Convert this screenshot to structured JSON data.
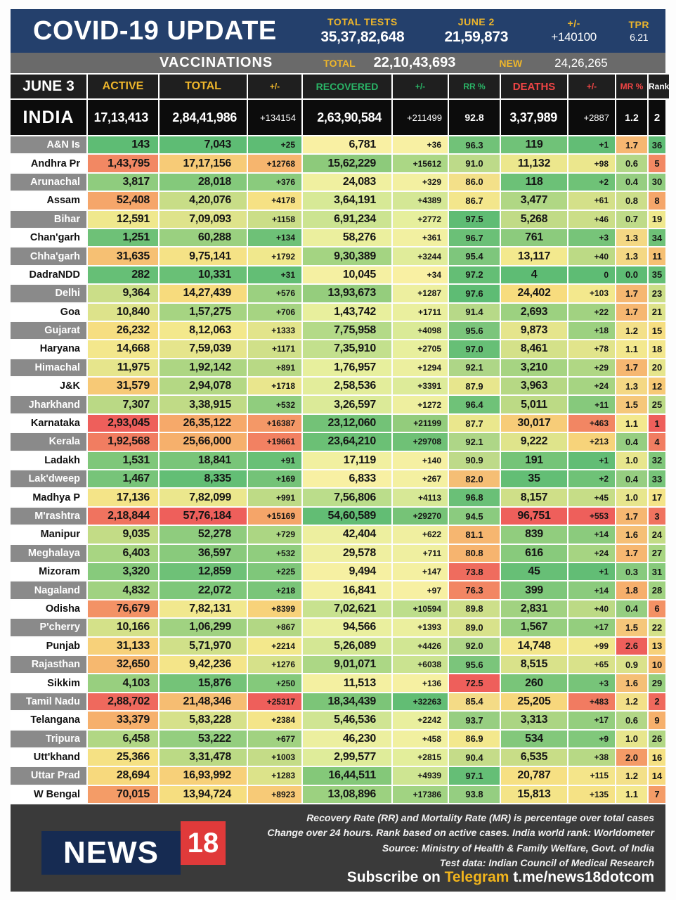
{
  "masthead": {
    "title": "COVID-19 UPDATE",
    "stats": [
      {
        "label": "TOTAL TESTS",
        "value": "35,37,82,648"
      },
      {
        "label": "JUNE 2",
        "value": "21,59,873"
      },
      {
        "label": "+/-",
        "value": "+140100"
      },
      {
        "label": "TPR",
        "value": "6.21"
      }
    ]
  },
  "vaccinations": {
    "title": "VACCINATIONS",
    "total_label": "TOTAL",
    "total_value": "22,10,43,693",
    "new_label": "NEW",
    "new_value": "24,26,265"
  },
  "chart_data": {
    "type": "table",
    "date_label": "JUNE 3",
    "columns": [
      "ACTIVE",
      "TOTAL",
      "+/-",
      "RECOVERED",
      "+/-",
      "RR %",
      "DEATHS",
      "+/-",
      "MR %",
      "Rank"
    ],
    "india": {
      "name": "INDIA",
      "cells": [
        "17,13,413",
        "2,84,41,986",
        "+134154",
        "2,63,90,584",
        "+211499",
        "92.8",
        "3,37,989",
        "+2887",
        "1.2",
        "2"
      ]
    },
    "rows": [
      {
        "name": "A&N Is",
        "cells": [
          "143",
          "7,043",
          "+25",
          "6,781",
          "+36",
          "96.3",
          "119",
          "+1",
          "1.7",
          "36"
        ]
      },
      {
        "name": "Andhra Pr",
        "cells": [
          "1,43,795",
          "17,17,156",
          "+12768",
          "15,62,229",
          "+15612",
          "91.0",
          "11,132",
          "+98",
          "0.6",
          "5"
        ]
      },
      {
        "name": "Arunachal",
        "cells": [
          "3,817",
          "28,018",
          "+376",
          "24,083",
          "+329",
          "86.0",
          "118",
          "+2",
          "0.4",
          "30"
        ]
      },
      {
        "name": "Assam",
        "cells": [
          "52,408",
          "4,20,076",
          "+4178",
          "3,64,191",
          "+4389",
          "86.7",
          "3,477",
          "+61",
          "0.8",
          "8"
        ]
      },
      {
        "name": "Bihar",
        "cells": [
          "12,591",
          "7,09,093",
          "+1158",
          "6,91,234",
          "+2772",
          "97.5",
          "5,268",
          "+46",
          "0.7",
          "19"
        ]
      },
      {
        "name": "Chan'garh",
        "cells": [
          "1,251",
          "60,288",
          "+134",
          "58,276",
          "+361",
          "96.7",
          "761",
          "+3",
          "1.3",
          "34"
        ]
      },
      {
        "name": "Chha'garh",
        "cells": [
          "31,635",
          "9,75,141",
          "+1792",
          "9,30,389",
          "+3244",
          "95.4",
          "13,117",
          "+40",
          "1.3",
          "11"
        ]
      },
      {
        "name": "DadraNDD",
        "cells": [
          "282",
          "10,331",
          "+31",
          "10,045",
          "+34",
          "97.2",
          "4",
          "0",
          "0.0",
          "35"
        ]
      },
      {
        "name": "Delhi",
        "cells": [
          "9,364",
          "14,27,439",
          "+576",
          "13,93,673",
          "+1287",
          "97.6",
          "24,402",
          "+103",
          "1.7",
          "23"
        ]
      },
      {
        "name": "Goa",
        "cells": [
          "10,840",
          "1,57,275",
          "+706",
          "1,43,742",
          "+1711",
          "91.4",
          "2,693",
          "+22",
          "1.7",
          "21"
        ]
      },
      {
        "name": "Gujarat",
        "cells": [
          "26,232",
          "8,12,063",
          "+1333",
          "7,75,958",
          "+4098",
          "95.6",
          "9,873",
          "+18",
          "1.2",
          "15"
        ]
      },
      {
        "name": "Haryana",
        "cells": [
          "14,668",
          "7,59,039",
          "+1171",
          "7,35,910",
          "+2705",
          "97.0",
          "8,461",
          "+78",
          "1.1",
          "18"
        ]
      },
      {
        "name": "Himachal",
        "cells": [
          "11,975",
          "1,92,142",
          "+891",
          "1,76,957",
          "+1294",
          "92.1",
          "3,210",
          "+29",
          "1.7",
          "20"
        ]
      },
      {
        "name": "J&K",
        "cells": [
          "31,579",
          "2,94,078",
          "+1718",
          "2,58,536",
          "+3391",
          "87.9",
          "3,963",
          "+24",
          "1.3",
          "12"
        ]
      },
      {
        "name": "Jharkhand",
        "cells": [
          "7,307",
          "3,38,915",
          "+532",
          "3,26,597",
          "+1272",
          "96.4",
          "5,011",
          "+11",
          "1.5",
          "25"
        ]
      },
      {
        "name": "Karnataka",
        "cells": [
          "2,93,045",
          "26,35,122",
          "+16387",
          "23,12,060",
          "+21199",
          "87.7",
          "30,017",
          "+463",
          "1.1",
          "1"
        ]
      },
      {
        "name": "Kerala",
        "cells": [
          "1,92,568",
          "25,66,000",
          "+19661",
          "23,64,210",
          "+29708",
          "92.1",
          "9,222",
          "+213",
          "0.4",
          "4"
        ]
      },
      {
        "name": "Ladakh",
        "cells": [
          "1,531",
          "18,841",
          "+91",
          "17,119",
          "+140",
          "90.9",
          "191",
          "+1",
          "1.0",
          "32"
        ]
      },
      {
        "name": "Lak'dweep",
        "cells": [
          "1,467",
          "8,335",
          "+169",
          "6,833",
          "+267",
          "82.0",
          "35",
          "+2",
          "0.4",
          "33"
        ]
      },
      {
        "name": "Madhya P",
        "cells": [
          "17,136",
          "7,82,099",
          "+991",
          "7,56,806",
          "+4113",
          "96.8",
          "8,157",
          "+45",
          "1.0",
          "17"
        ]
      },
      {
        "name": "M'rashtra",
        "cells": [
          "2,18,844",
          "57,76,184",
          "+15169",
          "54,60,589",
          "+29270",
          "94.5",
          "96,751",
          "+553",
          "1.7",
          "3"
        ]
      },
      {
        "name": "Manipur",
        "cells": [
          "9,035",
          "52,278",
          "+729",
          "42,404",
          "+622",
          "81.1",
          "839",
          "+14",
          "1.6",
          "24"
        ]
      },
      {
        "name": "Meghalaya",
        "cells": [
          "6,403",
          "36,597",
          "+532",
          "29,578",
          "+711",
          "80.8",
          "616",
          "+24",
          "1.7",
          "27"
        ]
      },
      {
        "name": "Mizoram",
        "cells": [
          "3,320",
          "12,859",
          "+225",
          "9,494",
          "+147",
          "73.8",
          "45",
          "+1",
          "0.3",
          "31"
        ]
      },
      {
        "name": "Nagaland",
        "cells": [
          "4,832",
          "22,072",
          "+218",
          "16,841",
          "+97",
          "76.3",
          "399",
          "+14",
          "1.8",
          "28"
        ]
      },
      {
        "name": "Odisha",
        "cells": [
          "76,679",
          "7,82,131",
          "+8399",
          "7,02,621",
          "+10594",
          "89.8",
          "2,831",
          "+40",
          "0.4",
          "6"
        ]
      },
      {
        "name": "P'cherry",
        "cells": [
          "10,166",
          "1,06,299",
          "+867",
          "94,566",
          "+1393",
          "89.0",
          "1,567",
          "+17",
          "1.5",
          "22"
        ]
      },
      {
        "name": "Punjab",
        "cells": [
          "31,133",
          "5,71,970",
          "+2214",
          "5,26,089",
          "+4426",
          "92.0",
          "14,748",
          "+99",
          "2.6",
          "13"
        ]
      },
      {
        "name": "Rajasthan",
        "cells": [
          "32,650",
          "9,42,236",
          "+1276",
          "9,01,071",
          "+6038",
          "95.6",
          "8,515",
          "+65",
          "0.9",
          "10"
        ]
      },
      {
        "name": "Sikkim",
        "cells": [
          "4,103",
          "15,876",
          "+250",
          "11,513",
          "+136",
          "72.5",
          "260",
          "+3",
          "1.6",
          "29"
        ]
      },
      {
        "name": "Tamil Nadu",
        "cells": [
          "2,88,702",
          "21,48,346",
          "+25317",
          "18,34,439",
          "+32263",
          "85.4",
          "25,205",
          "+483",
          "1.2",
          "2"
        ]
      },
      {
        "name": "Telangana",
        "cells": [
          "33,379",
          "5,83,228",
          "+2384",
          "5,46,536",
          "+2242",
          "93.7",
          "3,313",
          "+17",
          "0.6",
          "9"
        ]
      },
      {
        "name": "Tripura",
        "cells": [
          "6,458",
          "53,222",
          "+677",
          "46,230",
          "+458",
          "86.9",
          "534",
          "+9",
          "1.0",
          "26"
        ]
      },
      {
        "name": "Utt'khand",
        "cells": [
          "25,366",
          "3,31,478",
          "+1003",
          "2,99,577",
          "+2815",
          "90.4",
          "6,535",
          "+38",
          "2.0",
          "16"
        ]
      },
      {
        "name": "Uttar Prad",
        "cells": [
          "28,694",
          "16,93,992",
          "+1283",
          "16,44,511",
          "+4939",
          "97.1",
          "20,787",
          "+115",
          "1.2",
          "14"
        ]
      },
      {
        "name": "W Bengal",
        "cells": [
          "70,015",
          "13,94,724",
          "+8923",
          "13,08,896",
          "+17386",
          "93.8",
          "15,813",
          "+135",
          "1.1",
          "7"
        ]
      }
    ]
  },
  "footer": {
    "logo_text": "NEWS",
    "logo_number": "18",
    "notes": [
      "Recovery Rate (RR) and Mortality Rate (MR) is percentage over total cases",
      "Change over 24 hours. Rank based on active cases. India world rank: Worldometer",
      "Source: Ministry of Health & Family Welfare, Govt. of India",
      "Test data: Indian Council of Medical Research"
    ],
    "subscribe_prefix": "Subscribe on ",
    "subscribe_brand": "Telegram",
    "subscribe_suffix": " t.me/news18dotcom"
  },
  "colors": {
    "navy": "#24406c",
    "gold": "#eeb62b",
    "header_green": "#2ab567",
    "header_red": "#f04545",
    "bar_gray": "#6a6a6a",
    "row_label_gray": "#8a8a8a",
    "table_header_black": "#1f1f1f",
    "india_black": "#0c0c0c",
    "footer_bg": "#3a3a3a",
    "logo_navy": "#162b52",
    "logo_red": "#e03a3a",
    "scale_bad": [
      "#5ebc74",
      "#a6d482",
      "#f3e98e",
      "#f7dc7e",
      "#f6ad6b",
      "#ee5f5b"
    ],
    "scale_good": [
      "#f9f0a3",
      "#e7ef9d",
      "#c5e18e",
      "#8fcb7b",
      "#62bd74"
    ],
    "scale_rate": [
      "#ee5f5b",
      "#f6ad6b",
      "#f3e98e",
      "#aed687",
      "#5ebc74"
    ]
  }
}
